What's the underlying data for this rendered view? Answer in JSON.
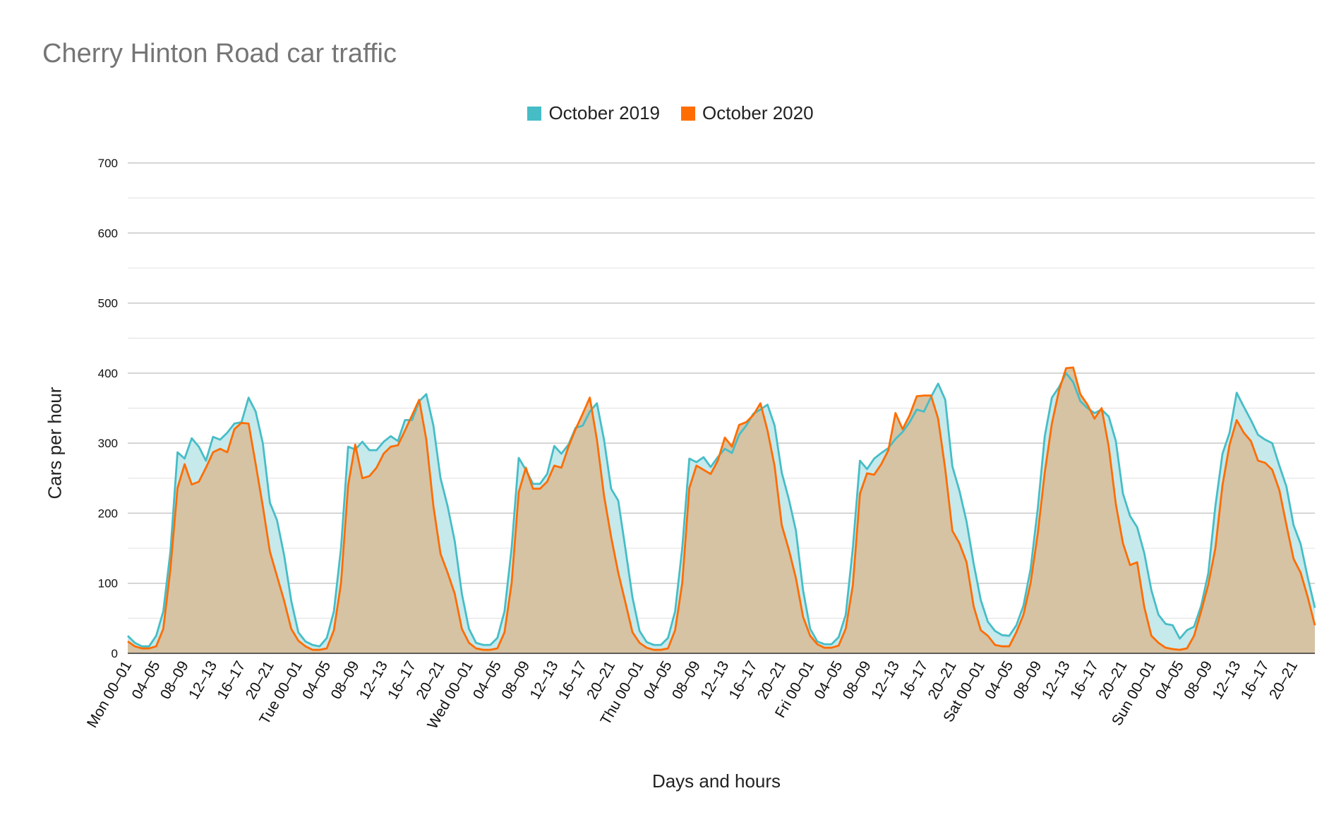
{
  "chart_data": {
    "type": "area",
    "title": "Cherry Hinton Road car traffic",
    "xlabel": "Days and hours",
    "ylabel": "Cars per hour",
    "ylim": [
      0,
      700
    ],
    "yticks": [
      0,
      100,
      200,
      300,
      400,
      500,
      600,
      700
    ],
    "grid": true,
    "legend_position": "top",
    "x_tick_labels": [
      "Mon 00–01",
      "04–05",
      "08–09",
      "12–13",
      "16–17",
      "20–21",
      "Tue 00–01",
      "04–05",
      "08–09",
      "12–13",
      "16–17",
      "20–21",
      "Wed 00–01",
      "04–05",
      "08–09",
      "12–13",
      "16–17",
      "20–21",
      "Thu 00–01",
      "04–05",
      "08–09",
      "12–13",
      "16–17",
      "20–21",
      "Fri 00–01",
      "04–05",
      "08–09",
      "12–13",
      "16–17",
      "20–21",
      "Sat 00–01",
      "04–05",
      "08–09",
      "12–13",
      "16–17",
      "20–21",
      "Sun 00–01",
      "04–05",
      "08–09",
      "12–13",
      "16–17",
      "20–21"
    ],
    "series": [
      {
        "name": "October 2019",
        "color": "#46BDC6",
        "fill": "#C6E9EC",
        "values": [
          25,
          15,
          10,
          10,
          25,
          60,
          145,
          287,
          278,
          307,
          295,
          275,
          309,
          305,
          315,
          328,
          330,
          365,
          345,
          300,
          215,
          190,
          140,
          75,
          30,
          17,
          12,
          10,
          22,
          60,
          150,
          295,
          291,
          302,
          290,
          290,
          302,
          310,
          303,
          333,
          333,
          360,
          370,
          325,
          250,
          210,
          160,
          85,
          35,
          15,
          12,
          12,
          22,
          60,
          150,
          279,
          262,
          242,
          242,
          256,
          296,
          285,
          298,
          322,
          325,
          345,
          357,
          305,
          235,
          218,
          150,
          80,
          32,
          16,
          12,
          12,
          22,
          60,
          150,
          278,
          273,
          280,
          266,
          280,
          292,
          286,
          312,
          325,
          342,
          348,
          355,
          325,
          258,
          220,
          175,
          90,
          35,
          17,
          13,
          13,
          23,
          55,
          150,
          275,
          263,
          278,
          286,
          293,
          306,
          316,
          330,
          348,
          345,
          366,
          385,
          362,
          267,
          232,
          188,
          128,
          76,
          45,
          32,
          26,
          25,
          40,
          68,
          120,
          205,
          310,
          365,
          380,
          400,
          387,
          360,
          350,
          343,
          348,
          338,
          303,
          228,
          196,
          180,
          143,
          90,
          55,
          42,
          40,
          21,
          33,
          38,
          68,
          114,
          210,
          285,
          315,
          372,
          352,
          333,
          312,
          305,
          300,
          268,
          238,
          183,
          156,
          108,
          65
        ]
      },
      {
        "name": "October 2020",
        "color": "#FF6D01",
        "fill": "#D6C3A4",
        "values": [
          17,
          10,
          7,
          7,
          10,
          35,
          120,
          236,
          270,
          241,
          245,
          265,
          287,
          292,
          287,
          320,
          329,
          328,
          270,
          210,
          145,
          110,
          75,
          35,
          18,
          10,
          5,
          5,
          7,
          33,
          100,
          240,
          298,
          250,
          253,
          265,
          285,
          295,
          297,
          318,
          340,
          362,
          305,
          210,
          142,
          115,
          85,
          35,
          15,
          7,
          5,
          5,
          7,
          30,
          100,
          230,
          265,
          235,
          235,
          245,
          268,
          265,
          295,
          320,
          342,
          365,
          305,
          225,
          166,
          115,
          73,
          30,
          15,
          8,
          5,
          5,
          7,
          33,
          100,
          236,
          268,
          262,
          256,
          275,
          308,
          295,
          326,
          330,
          340,
          357,
          318,
          267,
          183,
          148,
          107,
          52,
          25,
          13,
          8,
          8,
          11,
          35,
          97,
          228,
          257,
          255,
          270,
          290,
          343,
          320,
          340,
          367,
          368,
          368,
          335,
          263,
          175,
          157,
          130,
          67,
          33,
          25,
          12,
          10,
          10,
          30,
          55,
          100,
          170,
          258,
          328,
          375,
          407,
          408,
          370,
          355,
          335,
          350,
          295,
          213,
          157,
          126,
          130,
          66,
          25,
          15,
          8,
          6,
          5,
          7,
          25,
          60,
          98,
          150,
          240,
          298,
          333,
          315,
          303,
          275,
          272,
          262,
          233,
          183,
          135,
          115,
          80,
          40
        ]
      }
    ]
  }
}
